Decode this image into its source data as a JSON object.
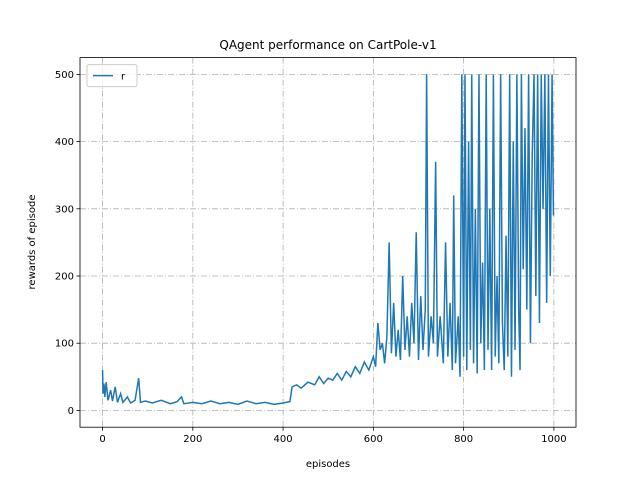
{
  "chart_data": {
    "type": "line",
    "title": "QAgent performance on CartPole-v1",
    "xlabel": "episodes",
    "ylabel": "rewards of episode",
    "xlim": [
      -50,
      1049
    ],
    "ylim": [
      -25,
      525
    ],
    "xticks": [
      0,
      200,
      400,
      600,
      800,
      1000
    ],
    "yticks": [
      0,
      100,
      200,
      300,
      400,
      500
    ],
    "grid": true,
    "legend": "upper left",
    "x": [
      0,
      1,
      3,
      5,
      8,
      12,
      18,
      22,
      28,
      33,
      40,
      45,
      55,
      62,
      72,
      80,
      84,
      95,
      110,
      130,
      150,
      165,
      175,
      180,
      200,
      220,
      240,
      260,
      280,
      300,
      320,
      340,
      360,
      380,
      400,
      415,
      420,
      430,
      440,
      455,
      470,
      480,
      490,
      500,
      510,
      520,
      530,
      540,
      550,
      560,
      570,
      580,
      590,
      600,
      605,
      610,
      615,
      620,
      625,
      630,
      635,
      640,
      645,
      650,
      655,
      660,
      665,
      670,
      675,
      680,
      685,
      690,
      695,
      700,
      705,
      710,
      715,
      718,
      722,
      728,
      733,
      738,
      742,
      748,
      755,
      760,
      765,
      770,
      775,
      778,
      782,
      788,
      792,
      796,
      800,
      803,
      807,
      811,
      815,
      818,
      822,
      826,
      830,
      834,
      838,
      842,
      846,
      850,
      854,
      858,
      862,
      866,
      870,
      874,
      878,
      882,
      886,
      890,
      894,
      898,
      902,
      906,
      910,
      914,
      918,
      922,
      925,
      928,
      932,
      936,
      940,
      944,
      948,
      952,
      956,
      960,
      964,
      968,
      972,
      976,
      980,
      984,
      988,
      992,
      996,
      999
    ],
    "series": [
      {
        "name": "r",
        "color": "#1f77b4",
        "values": [
          60,
          25,
          40,
          20,
          42,
          15,
          30,
          14,
          35,
          12,
          25,
          12,
          20,
          11,
          15,
          48,
          12,
          14,
          11,
          15,
          10,
          13,
          20,
          10,
          12,
          10,
          14,
          10,
          12,
          9,
          14,
          10,
          12,
          9,
          11,
          13,
          35,
          38,
          33,
          42,
          38,
          50,
          40,
          48,
          45,
          55,
          45,
          58,
          50,
          65,
          55,
          72,
          60,
          80,
          65,
          130,
          90,
          100,
          70,
          110,
          250,
          85,
          160,
          80,
          120,
          75,
          200,
          90,
          140,
          80,
          160,
          100,
          265,
          75,
          170,
          90,
          150,
          500,
          80,
          140,
          100,
          370,
          80,
          140,
          70,
          250,
          80,
          160,
          60,
          320,
          70,
          140,
          50,
          500,
          80,
          500,
          60,
          400,
          90,
          500,
          70,
          300,
          55,
          500,
          100,
          220,
          60,
          500,
          90,
          300,
          60,
          500,
          80,
          200,
          70,
          500,
          130,
          60,
          260,
          80,
          500,
          50,
          400,
          90,
          500,
          150,
          60,
          500,
          210,
          420,
          150,
          500,
          100,
          380,
          500,
          170,
          500,
          130,
          500,
          300,
          500,
          160,
          500,
          200,
          500,
          290
        ]
      }
    ]
  }
}
